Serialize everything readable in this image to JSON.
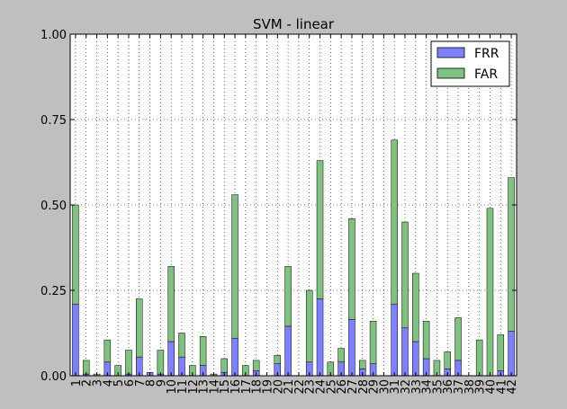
{
  "chart_data": {
    "type": "bar",
    "stacked": true,
    "title": "SVM - linear",
    "xlabel": "",
    "ylabel": "",
    "ylim": [
      0,
      1
    ],
    "yticks": [
      0.0,
      0.25,
      0.5,
      0.75,
      1.0
    ],
    "ytick_labels": [
      "0.00",
      "0.25",
      "0.50",
      "0.75",
      "1.00"
    ],
    "grid": true,
    "legend_position": "top-right",
    "categories": [
      "1",
      "2",
      "3",
      "4",
      "5",
      "6",
      "7",
      "8",
      "9",
      "10",
      "11",
      "12",
      "13",
      "14",
      "15",
      "16",
      "17",
      "18",
      "19",
      "20",
      "21",
      "22",
      "23",
      "24",
      "25",
      "26",
      "27",
      "28",
      "29",
      "30",
      "31",
      "32",
      "33",
      "34",
      "35",
      "36",
      "37",
      "38",
      "39",
      "40",
      "41",
      "42"
    ],
    "series": [
      {
        "name": "FRR",
        "color": "#8080ff",
        "values": [
          0.21,
          0.005,
          0.0,
          0.04,
          0.0,
          0.005,
          0.055,
          0.01,
          0.005,
          0.1,
          0.055,
          0.0,
          0.03,
          0.0,
          0.01,
          0.11,
          0.0,
          0.015,
          0.0,
          0.035,
          0.145,
          0.0,
          0.04,
          0.225,
          0.0,
          0.04,
          0.165,
          0.02,
          0.035,
          0.0,
          0.21,
          0.14,
          0.1,
          0.05,
          0.0,
          0.02,
          0.045,
          0.0,
          0.0,
          0.0,
          0.015,
          0.13
        ]
      },
      {
        "name": "FAR",
        "color": "#80c080",
        "values": [
          0.29,
          0.04,
          0.005,
          0.065,
          0.03,
          0.07,
          0.17,
          0.0,
          0.07,
          0.22,
          0.07,
          0.03,
          0.085,
          0.005,
          0.04,
          0.42,
          0.03,
          0.03,
          0.0,
          0.025,
          0.175,
          0.0,
          0.21,
          0.405,
          0.04,
          0.04,
          0.295,
          0.025,
          0.125,
          0.0,
          0.48,
          0.31,
          0.2,
          0.11,
          0.045,
          0.05,
          0.125,
          0.0,
          0.105,
          0.49,
          0.105,
          0.45
        ]
      }
    ]
  }
}
